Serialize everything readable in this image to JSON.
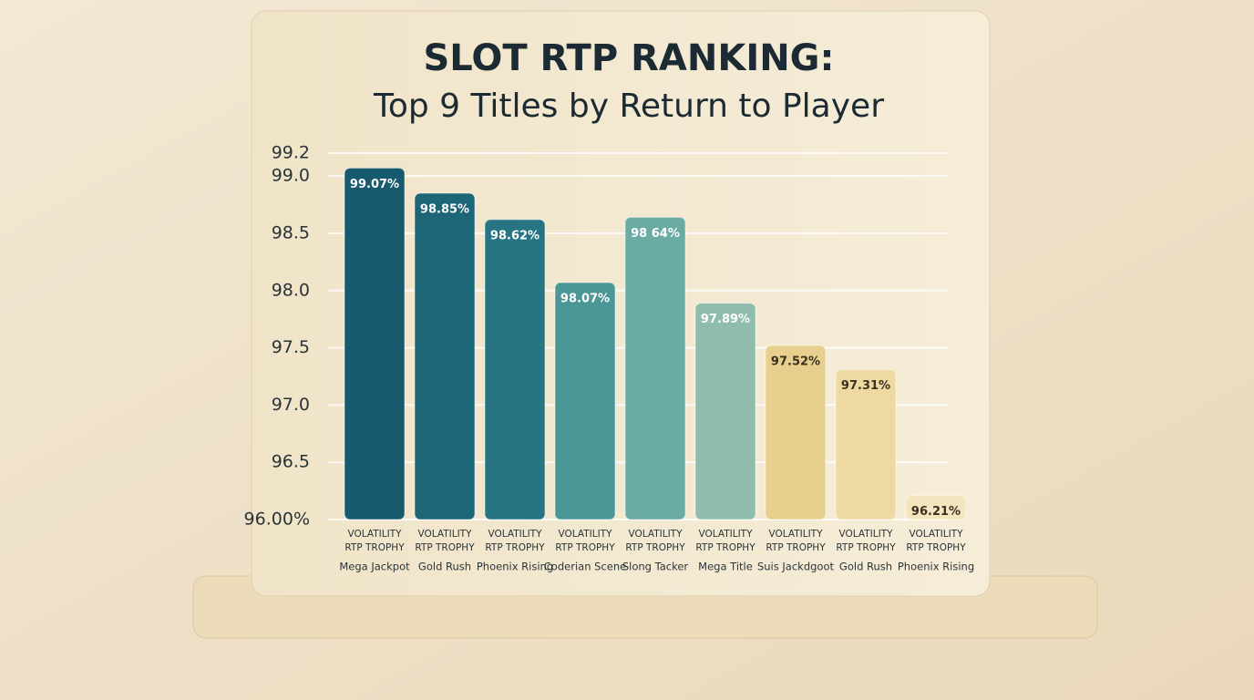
{
  "chart_data": {
    "type": "bar",
    "title": "SLOT RTP RANKING:",
    "subtitle": "Top 9 Titles by Return to Player",
    "categories": [
      "Mega Jackpot",
      "Gold Rush",
      "Phoenix Rising",
      "Coderian Scene",
      "Slong Tacker",
      "Mega Title",
      "Suis Jackdgoot",
      "Gold Rush",
      "Phoenix Rising"
    ],
    "caption_lines": [
      "VOLATILITY",
      "RTP TROPHY"
    ],
    "values": [
      99.07,
      98.85,
      98.62,
      98.07,
      98.64,
      97.89,
      97.52,
      97.31,
      96.21
    ],
    "value_labels": [
      "99.07%",
      "98.85%",
      "98.62%",
      "98.07%",
      "98 64%",
      "97.89%",
      "97.52%",
      "97.31%",
      "96.21%"
    ],
    "colors": [
      "#175a6e",
      "#1d6678",
      "#277482",
      "#4b9797",
      "#6aaba4",
      "#8fbcab",
      "#e7cf8e",
      "#eed9a2",
      "#f3e5bd"
    ],
    "ylim": [
      96,
      99.2
    ],
    "yticks": [
      {
        "value": 96,
        "label": "96.00%"
      },
      96.5,
      {
        "value": 97,
        "label": "97.0"
      },
      97.5,
      {
        "value": 98,
        "label": "98.0"
      },
      98.5,
      {
        "value": 99,
        "label": "99.0"
      },
      99.2
    ],
    "grid": true
  }
}
